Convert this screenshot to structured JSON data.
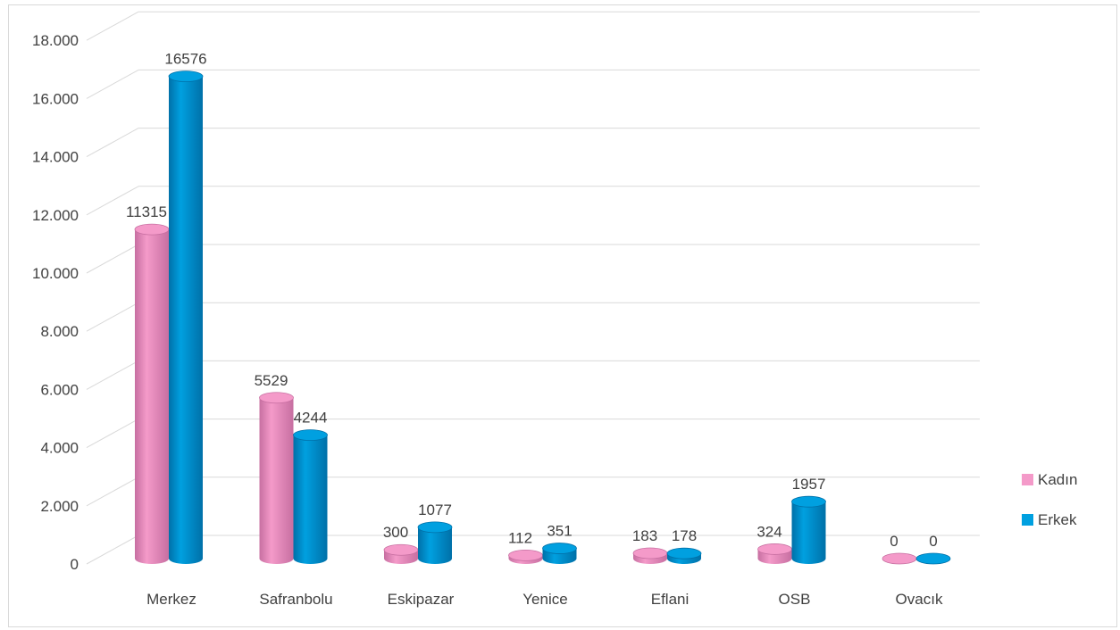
{
  "chart_data": {
    "type": "bar",
    "categories": [
      "Merkez",
      "Safranbolu",
      "Eskipazar",
      "Yenice",
      "Eflani",
      "OSB",
      "Ovacık"
    ],
    "series": [
      {
        "name": "Kadın",
        "values": [
          11315,
          5529,
          300,
          112,
          183,
          324,
          0
        ],
        "color": "#f49ac9",
        "dark": "#c76fa1"
      },
      {
        "name": "Erkek",
        "values": [
          16576,
          4244,
          1077,
          351,
          178,
          1957,
          0
        ],
        "color": "#00a0e0",
        "dark": "#0070a8"
      }
    ],
    "y_ticks": [
      "0",
      "2.000",
      "4.000",
      "6.000",
      "8.000",
      "10.000",
      "12.000",
      "14.000",
      "16.000",
      "18.000"
    ],
    "ylim": [
      0,
      18000
    ],
    "grid": true,
    "legend_position": "right",
    "title": "",
    "xlabel": "",
    "ylabel": ""
  }
}
